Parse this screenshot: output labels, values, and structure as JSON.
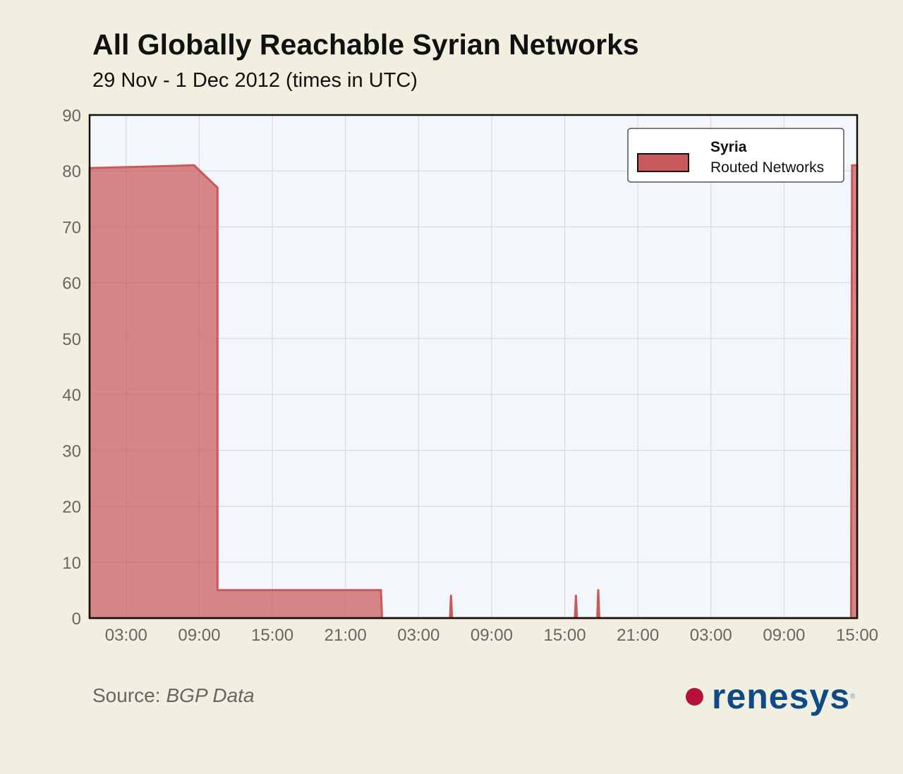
{
  "chart_data": {
    "type": "area",
    "title": "All Globally Reachable Syrian Networks",
    "subtitle": "29 Nov - 1 Dec 2012 (times in UTC)",
    "xlabel": "",
    "ylabel": "",
    "xlim": [
      "2012-11-29 00:00",
      "2012-12-01 15:00"
    ],
    "ylim": [
      0,
      90
    ],
    "yticks": [
      0,
      10,
      20,
      30,
      40,
      50,
      60,
      70,
      80,
      90
    ],
    "xticks": [
      {
        "t": "2012-11-29 03:00",
        "label": "03:00"
      },
      {
        "t": "2012-11-29 09:00",
        "label": "09:00"
      },
      {
        "t": "2012-11-29 15:00",
        "label": "15:00"
      },
      {
        "t": "2012-11-29 21:00",
        "label": "21:00"
      },
      {
        "t": "2012-11-30 03:00",
        "label": "03:00"
      },
      {
        "t": "2012-11-30 09:00",
        "label": "09:00"
      },
      {
        "t": "2012-11-30 15:00",
        "label": "15:00"
      },
      {
        "t": "2012-11-30 21:00",
        "label": "21:00"
      },
      {
        "t": "2012-12-01 03:00",
        "label": "03:00"
      },
      {
        "t": "2012-12-01 09:00",
        "label": "09:00"
      },
      {
        "t": "2012-12-01 15:00",
        "label": "15:00"
      }
    ],
    "grid": true,
    "legend": {
      "position": "top-right",
      "title": "Syria",
      "entry": "Routed Networks"
    },
    "series": [
      {
        "name": "Routed Networks",
        "color": "#c9595b",
        "points": [
          [
            "2012-11-29 00:00",
            80.5
          ],
          [
            "2012-11-29 08:35",
            81
          ],
          [
            "2012-11-29 10:30",
            77
          ],
          [
            "2012-11-29 10:30",
            5
          ],
          [
            "2012-11-29 23:55",
            5
          ],
          [
            "2012-11-30 00:00",
            0
          ],
          [
            "2012-11-30 05:35",
            0
          ],
          [
            "2012-11-30 05:40",
            4
          ],
          [
            "2012-11-30 05:45",
            0
          ],
          [
            "2012-11-30 15:50",
            0
          ],
          [
            "2012-11-30 15:55",
            4
          ],
          [
            "2012-11-30 16:00",
            0
          ],
          [
            "2012-11-30 17:40",
            0
          ],
          [
            "2012-11-30 17:45",
            5
          ],
          [
            "2012-11-30 17:50",
            0
          ],
          [
            "2012-12-01 14:30",
            0
          ],
          [
            "2012-12-01 14:35",
            81
          ],
          [
            "2012-12-01 15:00",
            81
          ]
        ]
      }
    ]
  },
  "source": {
    "label": "Source:",
    "value": "BGP Data"
  },
  "logo": {
    "text": "renesys"
  },
  "colors": {
    "background": "#f1efdf",
    "plot_bg": "#f3f7fb",
    "series": "#c9595b",
    "logo_dot": "#b5123a",
    "logo_text": "#0d4a86"
  }
}
